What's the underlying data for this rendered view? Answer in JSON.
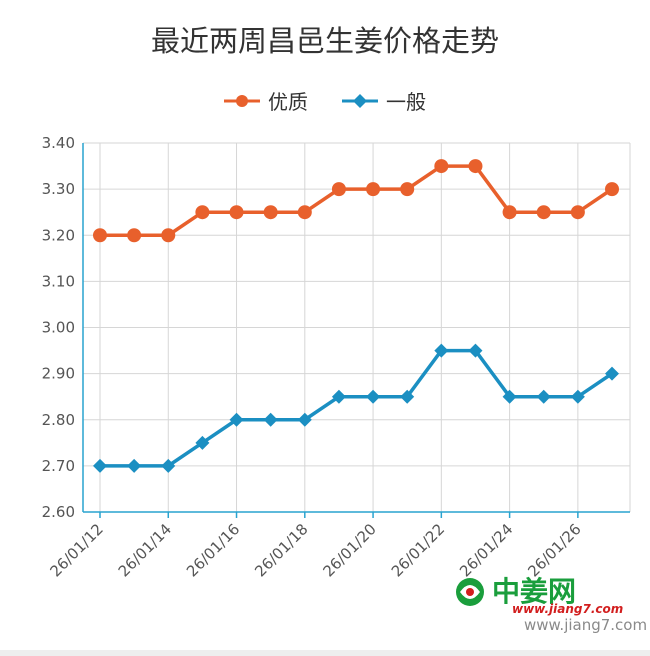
{
  "chart_data": {
    "type": "line",
    "title": "最近两周昌邑生姜价格走势",
    "categories": [
      "26/01/12",
      "26/01/13",
      "26/01/14",
      "26/01/15",
      "26/01/16",
      "26/01/17",
      "26/01/18",
      "26/01/19",
      "26/01/20",
      "26/01/21",
      "26/01/22",
      "26/01/23",
      "26/01/24",
      "26/01/25",
      "26/01/26",
      "26/01/27"
    ],
    "x_tick_labels": [
      "26/01/12",
      "26/01/14",
      "26/01/16",
      "26/01/18",
      "26/01/20",
      "26/01/22",
      "26/01/24",
      "26/01/26"
    ],
    "y_tick_labels": [
      "2.60",
      "2.70",
      "2.80",
      "2.90",
      "3.00",
      "3.10",
      "3.20",
      "3.30",
      "3.40"
    ],
    "ylim": [
      2.6,
      3.4
    ],
    "grid": true,
    "legend_position": "top-center",
    "series": [
      {
        "name": "优质",
        "color": "#E8602C",
        "marker": "circle",
        "values": [
          3.2,
          3.2,
          3.2,
          3.25,
          3.25,
          3.25,
          3.25,
          3.3,
          3.3,
          3.3,
          3.35,
          3.35,
          3.25,
          3.25,
          3.25,
          3.3
        ]
      },
      {
        "name": "一般",
        "color": "#1B8FC2",
        "marker": "diamond",
        "values": [
          2.7,
          2.7,
          2.7,
          2.75,
          2.8,
          2.8,
          2.8,
          2.85,
          2.85,
          2.85,
          2.95,
          2.95,
          2.85,
          2.85,
          2.85,
          2.9
        ]
      }
    ]
  },
  "watermark": {
    "brand": "中姜网",
    "url": "www.jiang7.com",
    "url2": "www.jiang7.com"
  }
}
